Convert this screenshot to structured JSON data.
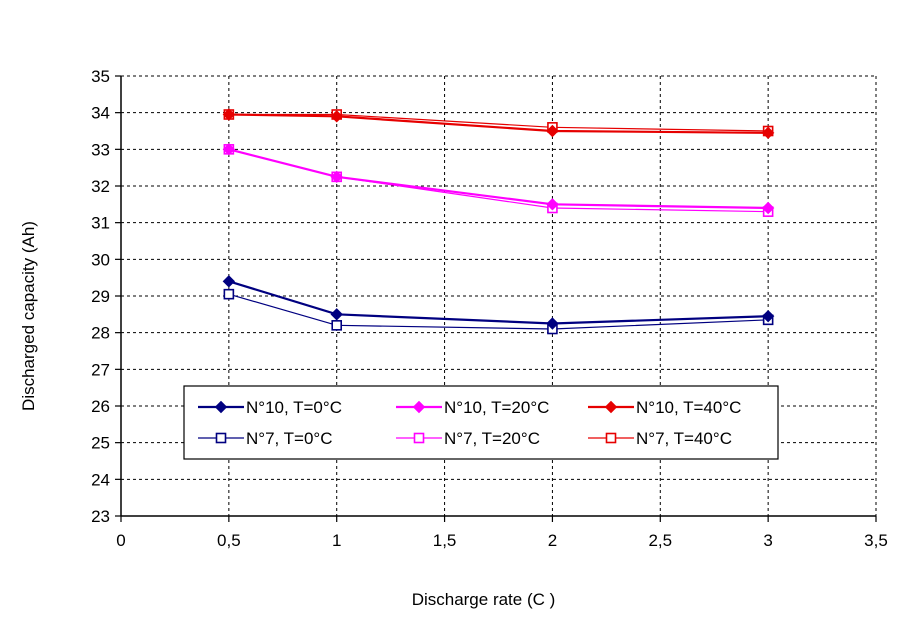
{
  "chart_data": {
    "type": "line",
    "title": "",
    "xlabel": "Discharge rate (C )",
    "ylabel": "Discharged capacity (Ah)",
    "xlim": [
      0,
      3.5
    ],
    "ylim": [
      23,
      35
    ],
    "xticks": [
      0,
      0.5,
      1,
      1.5,
      2,
      2.5,
      3,
      3.5
    ],
    "xtick_labels": [
      "0",
      "0,5",
      "1",
      "1,5",
      "2",
      "2,5",
      "3",
      "3,5"
    ],
    "yticks": [
      23,
      24,
      25,
      26,
      27,
      28,
      29,
      30,
      31,
      32,
      33,
      34,
      35
    ],
    "ytick_labels": [
      "23",
      "24",
      "25",
      "26",
      "27",
      "28",
      "29",
      "30",
      "31",
      "32",
      "33",
      "34",
      "35"
    ],
    "grid": true,
    "legend_position": "lower-center",
    "series": [
      {
        "name": "N°10, T=0°C",
        "color": "#000080",
        "marker": "filled-diamond",
        "line_width": 2.2,
        "x": [
          0.5,
          1,
          2,
          3
        ],
        "y": [
          29.4,
          28.5,
          28.25,
          28.45
        ]
      },
      {
        "name": "N°10, T=20°C",
        "color": "#ff00ff",
        "marker": "filled-diamond",
        "line_width": 2.2,
        "x": [
          0.5,
          1,
          2,
          3
        ],
        "y": [
          33.0,
          32.25,
          31.5,
          31.4
        ]
      },
      {
        "name": "N°10, T=40°C",
        "color": "#e60000",
        "marker": "filled-diamond",
        "line_width": 2.2,
        "x": [
          0.5,
          1,
          2,
          3
        ],
        "y": [
          33.95,
          33.9,
          33.5,
          33.45
        ]
      },
      {
        "name": "N°7, T=0°C",
        "color": "#000080",
        "marker": "open-square",
        "line_width": 1.2,
        "x": [
          0.5,
          1,
          2,
          3
        ],
        "y": [
          29.05,
          28.2,
          28.1,
          28.35
        ]
      },
      {
        "name": "N°7, T=20°C",
        "color": "#ff00ff",
        "marker": "open-square",
        "line_width": 1.2,
        "x": [
          0.5,
          1,
          2,
          3
        ],
        "y": [
          33.0,
          32.25,
          31.4,
          31.3
        ]
      },
      {
        "name": "N°7, T=40°C",
        "color": "#e60000",
        "marker": "open-square",
        "line_width": 1.2,
        "x": [
          0.5,
          1,
          2,
          3
        ],
        "y": [
          33.95,
          33.95,
          33.6,
          33.5
        ]
      }
    ]
  }
}
